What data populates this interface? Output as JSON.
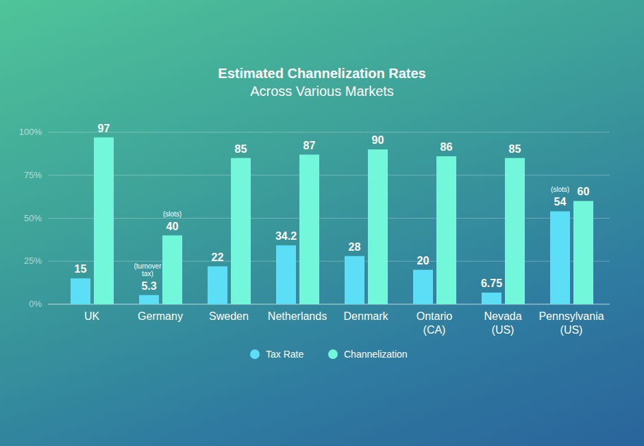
{
  "chart_data": {
    "type": "bar",
    "title": "Estimated Channelization Rates",
    "subtitle": "Across Various Markets",
    "categories": [
      "UK",
      "Germany",
      "Sweden",
      "Netherlands",
      "Denmark",
      "Ontario (CA)",
      "Nevada (US)",
      "Pennsylvania (US)"
    ],
    "series": [
      {
        "name": "Tax Rate",
        "color": "#5cdff6",
        "values": [
          15,
          5.3,
          22,
          34.2,
          28,
          20,
          6.75,
          54
        ],
        "annotations": [
          null,
          "(turnover tax)",
          null,
          null,
          null,
          null,
          null,
          "(slots)"
        ]
      },
      {
        "name": "Channelization",
        "color": "#73f7da",
        "values": [
          97,
          40,
          85,
          87,
          90,
          86,
          85,
          60
        ],
        "annotations": [
          null,
          "(slots)",
          null,
          null,
          null,
          null,
          null,
          null
        ]
      }
    ],
    "ylim": [
      0,
      100
    ],
    "yticks": [
      {
        "value": 0,
        "label": "0%"
      },
      {
        "value": 25,
        "label": "25%"
      },
      {
        "value": 50,
        "label": "50%"
      },
      {
        "value": 75,
        "label": "75%"
      },
      {
        "value": 100,
        "label": "100%"
      }
    ],
    "grid": true,
    "data_labels": true,
    "legend": "bottom"
  }
}
